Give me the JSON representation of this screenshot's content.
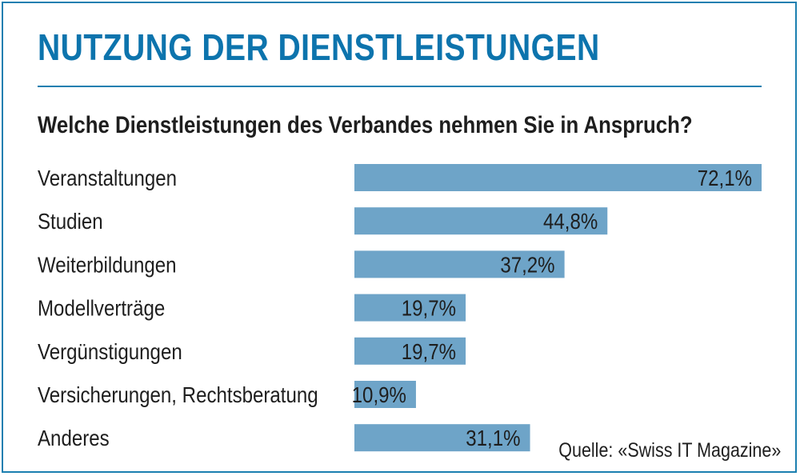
{
  "title": "NUTZUNG DER DIENSTLEISTUNGEN",
  "source": "Quelle: «Swiss IT Magazine»",
  "colors": {
    "accent": "#0d74ad",
    "bar": "#6ea4c8",
    "text": "#1e1e1e"
  },
  "chart_data": {
    "type": "bar",
    "orientation": "horizontal",
    "title": "Welche Dienstleistungen des Verbandes nehmen Sie in Anspruch?",
    "categories": [
      "Veranstaltungen",
      "Studien",
      "Weiterbildungen",
      "Modellverträge",
      "Vergünstigungen",
      "Versicherungen, Rechtsberatung",
      "Anderes"
    ],
    "values": [
      72.1,
      44.8,
      37.2,
      19.7,
      19.7,
      10.9,
      31.1
    ],
    "value_labels": [
      "72,1%",
      "44,8%",
      "37,2%",
      "19,7%",
      "19,7%",
      "10,9%",
      "31,1%"
    ],
    "xlim": [
      0,
      72.1
    ],
    "grid": false,
    "legend": "none"
  }
}
